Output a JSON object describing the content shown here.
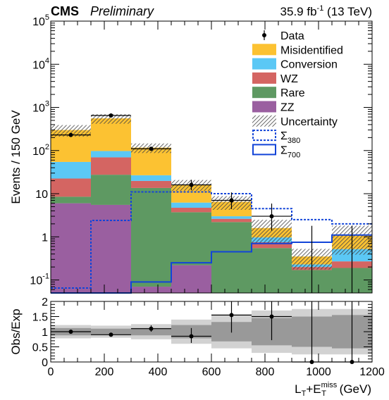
{
  "header": {
    "cms": "CMS",
    "preliminary": "Preliminary",
    "lumi_value": "35.9 fb",
    "lumi_exp": "-1",
    "lumi_energy": " (13 TeV)"
  },
  "chart_data": [
    {
      "type": "bar",
      "stacked": true,
      "ylabel": "Events / 150 GeV",
      "xlim": [
        0,
        1200
      ],
      "ylim": [
        0.05,
        100000
      ],
      "log_y": true,
      "bin_edges": [
        0,
        150,
        300,
        450,
        600,
        750,
        900,
        1050,
        1200
      ],
      "y_ticks": [
        {
          "value": 0.1,
          "mant": "10",
          "exp": "-1"
        },
        {
          "value": 1,
          "mant": "1",
          "exp": ""
        },
        {
          "value": 10,
          "mant": "10",
          "exp": ""
        },
        {
          "value": 100,
          "mant": "10",
          "exp": "2"
        },
        {
          "value": 1000,
          "mant": "10",
          "exp": "3"
        },
        {
          "value": 10000,
          "mant": "10",
          "exp": "4"
        },
        {
          "value": 100000,
          "mant": "10",
          "exp": "5"
        }
      ],
      "stack": [
        {
          "name": "ZZ",
          "color": "#9a5fa0",
          "values": [
            6,
            5.5,
            0.07,
            0.22,
            0,
            0,
            0,
            0
          ]
        },
        {
          "name": "Rare",
          "color": "#5e9962",
          "values": [
            2.5,
            22,
            13.5,
            3.5,
            2.2,
            0.55,
            0.17,
            0.19
          ]
        },
        {
          "name": "WZ",
          "color": "#d46562",
          "values": [
            14,
            42,
            6.2,
            1.0,
            0.42,
            0.2,
            0.03,
            0.08
          ]
        },
        {
          "name": "Conversion",
          "color": "#5bc8f5",
          "values": [
            32,
            28,
            7,
            1.5,
            0.38,
            0.22,
            0.03,
            0.25
          ]
        },
        {
          "name": "Misidentified",
          "color": "#fcc232",
          "values": [
            245,
            460,
            90,
            10,
            3.5,
            0.63,
            0.12,
            0.58
          ]
        }
      ],
      "uncertainty": {
        "name": "Uncertainty",
        "rel": [
          0.3,
          0.25,
          0.25,
          0.28,
          0.35,
          0.55,
          0.5,
          0.65
        ]
      },
      "data": {
        "name": "Data",
        "x": [
          75,
          225,
          375,
          525,
          675,
          825,
          975,
          1125
        ],
        "y": [
          230,
          650,
          110,
          16,
          7,
          3,
          0,
          0
        ],
        "err_lo": [
          15,
          25,
          11,
          4,
          2.6,
          1.6,
          0,
          0
        ],
        "err_hi": [
          16,
          26,
          12,
          5,
          3.7,
          2.9,
          1.8,
          1.8
        ]
      },
      "signals": [
        {
          "name": "Σ",
          "sub": "380",
          "color": "#1244d8",
          "dashed": true,
          "values": [
            0.065,
            2.4,
            11,
            11,
            10,
            4.5,
            2.5,
            2
          ]
        },
        {
          "name": "Σ",
          "sub": "700",
          "color": "#1244d8",
          "dashed": false,
          "values": [
            0.05,
            0.05,
            0.09,
            0.25,
            0.45,
            0.7,
            0.75,
            1.1
          ]
        }
      ],
      "legend_position": "top-right"
    },
    {
      "type": "scatter",
      "ylabel": "Obs/Exp",
      "xlim": [
        0,
        1200
      ],
      "ylim": [
        0,
        2
      ],
      "y_tick_labels": [
        "0",
        "0.5",
        "1",
        "1.5",
        "2"
      ],
      "x_tick_labels": [
        "0",
        "200",
        "400",
        "600",
        "800",
        "1000",
        "1200"
      ],
      "xlabel": {
        "main": "L",
        "sub1": "T",
        "plus": "+E",
        "sup": "miss",
        "sub2": "T",
        "unit": " (GeV)"
      },
      "bands": {
        "bin_edges": [
          0,
          150,
          300,
          450,
          600,
          750,
          900,
          1050,
          1200
        ],
        "inner": [
          0.12,
          0.1,
          0.12,
          0.22,
          0.32,
          0.45,
          0.5,
          0.55
        ],
        "outer": [
          0.22,
          0.2,
          0.25,
          0.4,
          0.55,
          0.7,
          0.75,
          0.75
        ],
        "inner_color": "#999999",
        "outer_color": "#d2d2d2"
      },
      "points": {
        "x": [
          75,
          225,
          375,
          525,
          675,
          825,
          975,
          1125
        ],
        "y": [
          1.0,
          0.9,
          1.1,
          0.85,
          1.55,
          1.5,
          0,
          0
        ],
        "err_lo": [
          0.07,
          0.04,
          0.1,
          0.22,
          0.58,
          0.78,
          0,
          0
        ],
        "err_hi": [
          0.07,
          0.04,
          0.11,
          0.27,
          0.8,
          1.4,
          3.0,
          3.0
        ]
      }
    }
  ]
}
